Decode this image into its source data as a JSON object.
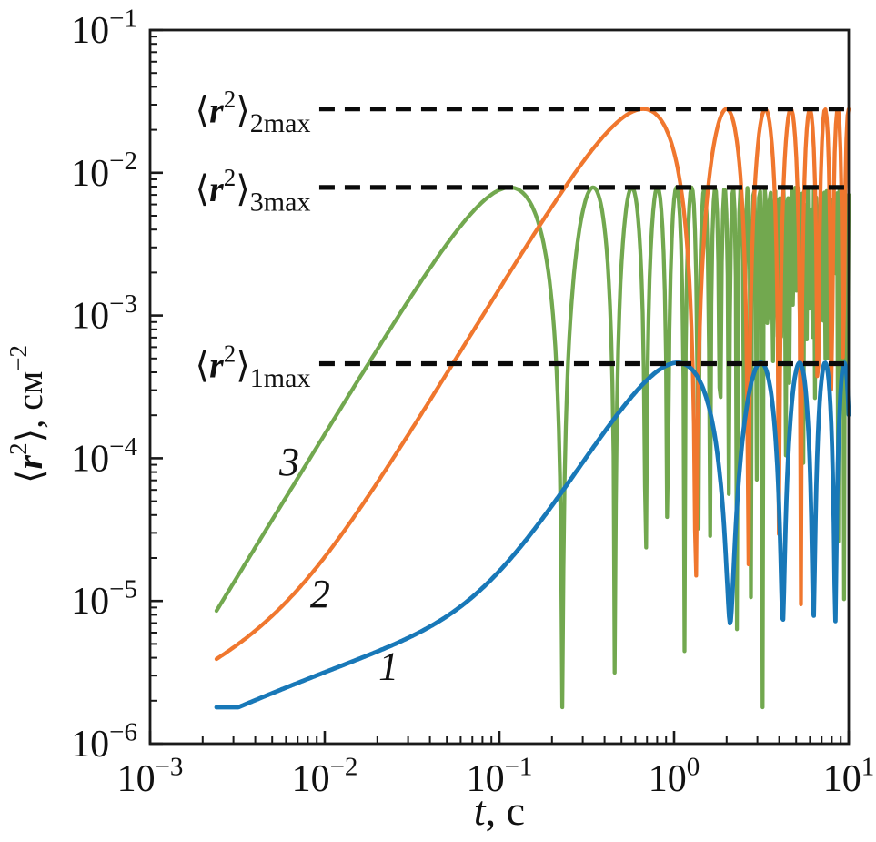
{
  "figure": {
    "background": "#ffffff",
    "axis_color": "#1a1a1a",
    "dash_color": "#0a0a0a"
  },
  "chart_data": {
    "type": "line",
    "title": "",
    "grid": false,
    "legend": false,
    "x_axis": {
      "label_parts": [
        {
          "t": "t",
          "i": true
        },
        {
          "t": ", с"
        }
      ],
      "lim_log10": [
        -3,
        1
      ],
      "ticks": [
        {
          "base": "10",
          "exp": "−3"
        },
        {
          "base": "10",
          "exp": "−2"
        },
        {
          "base": "10",
          "exp": "−1"
        },
        {
          "base": "10",
          "exp": "0"
        },
        {
          "base": "10",
          "exp": "1"
        }
      ]
    },
    "y_axis": {
      "label_parts": [
        {
          "t": "⟨"
        },
        {
          "t": "r",
          "i": true,
          "b": true
        },
        {
          "t": "2",
          "sup": true
        },
        {
          "t": "⟩, см"
        },
        {
          "t": "−2",
          "sup": true
        }
      ],
      "lim_log10": [
        -6,
        -1
      ],
      "ticks": [
        {
          "base": "10",
          "exp": "−1"
        },
        {
          "base": "10",
          "exp": "−2"
        },
        {
          "base": "10",
          "exp": "−3"
        },
        {
          "base": "10",
          "exp": "−4"
        },
        {
          "base": "10",
          "exp": "−5"
        },
        {
          "base": "10",
          "exp": "−6"
        }
      ]
    },
    "t_range": [
      0.0024,
      10
    ],
    "model": "y(t) = A·sin²(ω·t) + floor(t), log-sampled (aliasing reproduces dense oscillation block)",
    "series": [
      {
        "id": "3",
        "label": "3",
        "color": "#72a84f",
        "stroke_width": 4.3,
        "amplitude": 0.0079,
        "omega": 13.7,
        "first_peak_t": 0.115,
        "max_value": 0.0079,
        "oscillation": "sin_squared",
        "floor": {
          "type": "constant",
          "level": 0
        },
        "points_per_decade": 150,
        "label_pos": {
          "t": 0.00626,
          "v": 9.5e-05
        }
      },
      {
        "id": "2",
        "label": "2",
        "color": "#f0772e",
        "stroke_width": 4.3,
        "amplitude": 0.028,
        "omega": 2.36,
        "first_peak_t": 0.665,
        "max_value": 0.028,
        "oscillation": "sin_squared",
        "floor": {
          "type": "saturating",
          "level": 6e-06,
          "tau": 0.004,
          "power": 0.7
        },
        "points_per_decade": 150,
        "label_pos": {
          "t": 0.0094,
          "v": 1.13e-05
        }
      },
      {
        "id": "1",
        "label": "1",
        "color": "#1878b8",
        "stroke_width": 4.8,
        "amplitude": 0.00046,
        "omega": 1.5,
        "first_peak_t": 1.05,
        "max_value": 0.00046,
        "oscillation": "sin_squared",
        "floor": {
          "type": "saturating",
          "level": 7e-06,
          "tau": 0.035,
          "power": 0.55
        },
        "points_per_decade": 210,
        "label_pos": {
          "t": 0.0232,
          "v": 3.5e-06
        }
      }
    ],
    "max_lines": [
      {
        "id": "2max",
        "value": 0.028,
        "dash_start_t": 0.0093,
        "label_end_t": 0.0083,
        "label_parts": [
          {
            "t": "⟨"
          },
          {
            "t": "r",
            "i": true,
            "b": true
          },
          {
            "t": "2",
            "sup": true
          },
          {
            "t": "⟩"
          },
          {
            "t": "2max",
            "sub": true
          }
        ]
      },
      {
        "id": "3max",
        "value": 0.0079,
        "dash_start_t": 0.0093,
        "label_end_t": 0.0083,
        "label_parts": [
          {
            "t": "⟨"
          },
          {
            "t": "r",
            "i": true,
            "b": true
          },
          {
            "t": "2",
            "sup": true
          },
          {
            "t": "⟩"
          },
          {
            "t": "3max",
            "sub": true
          }
        ]
      },
      {
        "id": "1max",
        "value": 0.00046,
        "dash_start_t": 0.0093,
        "label_end_t": 0.0083,
        "label_parts": [
          {
            "t": "⟨"
          },
          {
            "t": "r",
            "i": true,
            "b": true
          },
          {
            "t": "2",
            "sup": true
          },
          {
            "t": "⟩"
          },
          {
            "t": "1max",
            "sub": true
          }
        ]
      }
    ]
  }
}
